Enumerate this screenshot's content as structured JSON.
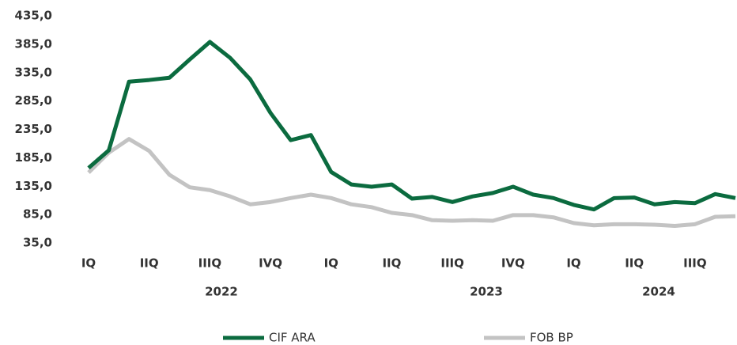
{
  "chart_data": {
    "type": "line",
    "categories": [
      "IQ",
      null,
      null,
      "IIQ",
      null,
      null,
      "IIIQ",
      null,
      null,
      "IVQ",
      null,
      null,
      "IQ",
      null,
      null,
      "IIQ",
      null,
      null,
      "IIIQ",
      null,
      null,
      "IVQ",
      null,
      null,
      "IQ",
      null,
      null,
      "IIQ",
      null,
      null,
      "IIIQ",
      null,
      null
    ],
    "groups": [
      "2022",
      "2023",
      "2024"
    ],
    "series": [
      {
        "name": "CIF ARA",
        "color": "#0b6b3f",
        "values": [
          167,
          198,
          319,
          322,
          326,
          358,
          389,
          361,
          323,
          264,
          216,
          225,
          160,
          138,
          134,
          138,
          113,
          116,
          107,
          117,
          123,
          134,
          120,
          114,
          102,
          94,
          114,
          115,
          103,
          107,
          105,
          121,
          114
        ]
      },
      {
        "name": "FOB BP",
        "color": "#c3c3c3",
        "values": [
          159,
          194,
          218,
          197,
          155,
          133,
          128,
          117,
          103,
          107,
          114,
          120,
          114,
          103,
          98,
          88,
          84,
          75,
          74,
          75,
          74,
          84,
          84,
          80,
          70,
          66,
          68,
          68,
          67,
          65,
          68,
          81,
          82
        ]
      }
    ],
    "ylim": [
      35,
      435
    ],
    "yticks": [
      {
        "value": 35,
        "label": "35,0"
      },
      {
        "value": 85,
        "label": "85,0"
      },
      {
        "value": 135,
        "label": "135,0"
      },
      {
        "value": 185,
        "label": "185,0"
      },
      {
        "value": 235,
        "label": "235,0"
      },
      {
        "value": 285,
        "label": "285,0"
      },
      {
        "value": 335,
        "label": "335,0"
      },
      {
        "value": 385,
        "label": "385,0"
      },
      {
        "value": 435,
        "label": "435,0"
      }
    ],
    "grid": false,
    "legend": "bottom"
  }
}
